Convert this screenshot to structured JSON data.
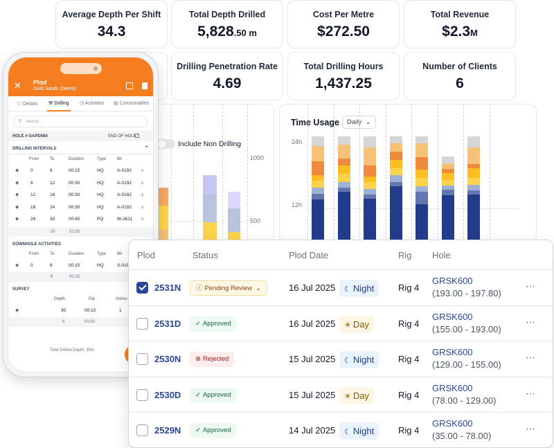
{
  "kpis": [
    {
      "label": "Average Depth Per Shift",
      "value": "34.3",
      "unit": ""
    },
    {
      "label": "Total Depth Drilled",
      "value": "5,828",
      "unit": ".50 m"
    },
    {
      "label": "Cost Per Metre",
      "value": "$272.50",
      "unit": ""
    },
    {
      "label": "Total Revenue",
      "value": "$2.3",
      "unit": "M"
    },
    {
      "label": "Drilling Penetration Rate",
      "value": "4.69",
      "unit": ""
    },
    {
      "label": "Total Drilling Hours",
      "value": "1,437.25",
      "unit": ""
    },
    {
      "label": "Number of Clients",
      "value": "6",
      "unit": ""
    }
  ],
  "depth_chart": {
    "toggle_label": "Include Non Drilling",
    "y_ticks": [
      "1000",
      "500"
    ]
  },
  "time_chart": {
    "title": "Time Usage",
    "dropdown": "Daily",
    "y_ticks": [
      "24h",
      "12h"
    ]
  },
  "colors": {
    "brand_orange": "#f47d20",
    "navy": "#233e8b",
    "link_blue": "#2a4797"
  },
  "phone": {
    "title": "Plod",
    "subtitle": "Gold Sands (Demo)",
    "tabs": [
      "Details",
      "Drilling",
      "Activities",
      "Consumables"
    ],
    "active_tab": "Drilling",
    "search_placeholder": "Search...",
    "hole_label": "HOLE # GAPD084",
    "end_of_hole": "END OF HOLE",
    "drilling_intervals": {
      "title": "DRILLING INTERVALS",
      "headers": [
        "From",
        "To",
        "Duration",
        "Type",
        "Bit"
      ],
      "rows": [
        [
          "0",
          "6",
          "00:15",
          "HQ",
          "A-0192"
        ],
        [
          "6",
          "12",
          "00:30",
          "HQ",
          "A-0192"
        ],
        [
          "12",
          "18",
          "00:30",
          "HQ",
          "A-0192"
        ],
        [
          "18",
          "24",
          "00:30",
          "HQ",
          "A-0192"
        ],
        [
          "24",
          "30",
          "00:45",
          "PQ",
          "W-2611"
        ]
      ],
      "total_depth": "30",
      "total_duration": "02:30"
    },
    "downhole": {
      "title": "DOWNHOLE ACTIVITIES",
      "headers": [
        "From",
        "To",
        "Duration",
        "Type",
        "Bit"
      ],
      "rows": [
        [
          "0",
          "6",
          "00:15",
          "HQ",
          "X-019"
        ]
      ],
      "total_depth": "6",
      "total_duration": "00:15"
    },
    "survey": {
      "title": "SURVEY",
      "headers": [
        "Depth",
        "Dip",
        "Azimu"
      ],
      "rows": [
        [
          "30",
          "00:15",
          "1"
        ]
      ],
      "total_depth": "6",
      "total_duration": "01:00"
    },
    "footer": "Total Drilled Depth: 30m"
  },
  "table": {
    "headers": [
      "Plod",
      "Status",
      "Plod Date",
      "Rig",
      "Hole"
    ],
    "rows": [
      {
        "checked": true,
        "id": "2531N",
        "status": "Pending Review",
        "status_kind": "pending",
        "date": "16 Jul 2025",
        "shift": "Night",
        "rig": "Rig 4",
        "hole": "GRSK600",
        "range": "(193.00 - 197.80)"
      },
      {
        "checked": false,
        "id": "2531D",
        "status": "Approved",
        "status_kind": "approved",
        "date": "16 Jul 2025",
        "shift": "Day",
        "rig": "Rig 4",
        "hole": "GRSK600",
        "range": "(155.00 - 193.00)"
      },
      {
        "checked": false,
        "id": "2530N",
        "status": "Rejected",
        "status_kind": "rejected",
        "date": "15 Jul 2025",
        "shift": "Night",
        "rig": "Rig 4",
        "hole": "GRSK600",
        "range": "(129.00 - 155.00)"
      },
      {
        "checked": false,
        "id": "2530D",
        "status": "Approved",
        "status_kind": "approved",
        "date": "15 Jul 2025",
        "shift": "Day",
        "rig": "Rig 4",
        "hole": "GRSK600",
        "range": "(78.00 - 129.00)"
      },
      {
        "checked": false,
        "id": "2529N",
        "status": "Approved",
        "status_kind": "approved",
        "date": "14 Jul 2025",
        "shift": "Night",
        "rig": "Rig 4",
        "hole": "GRSK600",
        "range": "(35.00 - 78.00)"
      }
    ]
  }
}
